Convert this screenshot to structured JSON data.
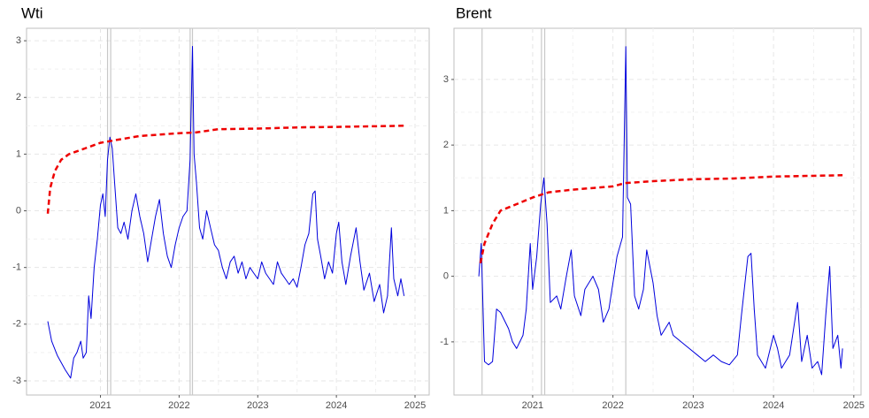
{
  "chart_data": [
    {
      "type": "line",
      "title": "Wti",
      "xlim": [
        2020.06,
        2025.18
      ],
      "xticks": [
        2021,
        2022,
        2023,
        2024,
        2025
      ],
      "ylim": [
        -3.25,
        3.22
      ],
      "yticks": [
        -3,
        -2,
        -1,
        0,
        1,
        2,
        3
      ],
      "grid": true,
      "vlines": [
        2021.09,
        2021.13,
        2022.14,
        2022.17
      ],
      "vline_color": "#c8c8c8",
      "series": [
        {
          "color": "#0000dd",
          "dash": false,
          "x": [
            2020.33,
            2020.38,
            2020.45,
            2020.55,
            2020.62,
            2020.66,
            2020.7,
            2020.75,
            2020.78,
            2020.82,
            2020.85,
            2020.88,
            2020.92,
            2020.96,
            2021.0,
            2021.03,
            2021.06,
            2021.09,
            2021.12,
            2021.15,
            2021.18,
            2021.22,
            2021.26,
            2021.3,
            2021.35,
            2021.4,
            2021.45,
            2021.5,
            2021.55,
            2021.6,
            2021.65,
            2021.7,
            2021.75,
            2021.8,
            2021.85,
            2021.9,
            2021.95,
            2022.0,
            2022.05,
            2022.1,
            2022.14,
            2022.17,
            2022.19,
            2022.22,
            2022.26,
            2022.3,
            2022.35,
            2022.4,
            2022.45,
            2022.5,
            2022.55,
            2022.6,
            2022.65,
            2022.7,
            2022.75,
            2022.8,
            2022.85,
            2022.9,
            2022.95,
            2023.0,
            2023.05,
            2023.1,
            2023.15,
            2023.2,
            2023.25,
            2023.3,
            2023.35,
            2023.4,
            2023.45,
            2023.5,
            2023.55,
            2023.6,
            2023.65,
            2023.7,
            2023.73,
            2023.76,
            2023.8,
            2023.85,
            2023.9,
            2023.95,
            2024.0,
            2024.03,
            2024.07,
            2024.12,
            2024.18,
            2024.25,
            2024.3,
            2024.35,
            2024.42,
            2024.48,
            2024.55,
            2024.6,
            2024.65,
            2024.7,
            2024.73,
            2024.78,
            2024.82,
            2024.86
          ],
          "values": [
            -1.95,
            -2.3,
            -2.55,
            -2.8,
            -2.95,
            -2.6,
            -2.5,
            -2.3,
            -2.6,
            -2.5,
            -1.5,
            -1.9,
            -1.0,
            -0.5,
            0.1,
            0.3,
            -0.1,
            0.9,
            1.3,
            1.1,
            0.5,
            -0.3,
            -0.4,
            -0.2,
            -0.5,
            0.0,
            0.3,
            -0.1,
            -0.4,
            -0.9,
            -0.5,
            -0.1,
            0.2,
            -0.4,
            -0.8,
            -1.0,
            -0.6,
            -0.3,
            -0.1,
            0.0,
            0.9,
            2.9,
            1.0,
            0.5,
            -0.3,
            -0.5,
            0.0,
            -0.3,
            -0.6,
            -0.7,
            -1.0,
            -1.2,
            -0.9,
            -0.8,
            -1.1,
            -0.9,
            -1.2,
            -1.0,
            -1.1,
            -1.2,
            -0.9,
            -1.1,
            -1.2,
            -1.3,
            -0.9,
            -1.1,
            -1.2,
            -1.3,
            -1.2,
            -1.35,
            -1.0,
            -0.6,
            -0.4,
            0.3,
            0.35,
            -0.5,
            -0.8,
            -1.2,
            -0.9,
            -1.1,
            -0.4,
            -0.2,
            -0.9,
            -1.3,
            -0.8,
            -0.3,
            -0.9,
            -1.4,
            -1.1,
            -1.6,
            -1.3,
            -1.8,
            -1.5,
            -0.3,
            -1.2,
            -1.5,
            -1.2,
            -1.5
          ]
        },
        {
          "color": "#ee0000",
          "dash": true,
          "x": [
            2020.33,
            2020.36,
            2020.42,
            2020.5,
            2020.6,
            2020.8,
            2021.0,
            2021.2,
            2021.5,
            2022.0,
            2022.2,
            2022.5,
            2023.0,
            2023.5,
            2024.0,
            2024.86
          ],
          "values": [
            -0.05,
            0.4,
            0.7,
            0.9,
            1.0,
            1.1,
            1.2,
            1.25,
            1.32,
            1.37,
            1.38,
            1.44,
            1.45,
            1.47,
            1.48,
            1.5
          ]
        }
      ]
    },
    {
      "type": "line",
      "title": "Brent",
      "xlim": [
        2020.02,
        2025.09
      ],
      "xticks": [
        2021,
        2022,
        2023,
        2024,
        2025
      ],
      "ylim": [
        -1.81,
        3.78
      ],
      "yticks": [
        -1,
        0,
        1,
        2,
        3
      ],
      "grid": true,
      "vlines": [
        2020.37,
        2021.11,
        2021.15,
        2022.16
      ],
      "vline_color": "#c8c8c8",
      "series": [
        {
          "color": "#0000dd",
          "dash": false,
          "x": [
            2020.33,
            2020.36,
            2020.4,
            2020.45,
            2020.5,
            2020.55,
            2020.6,
            2020.7,
            2020.75,
            2020.8,
            2020.88,
            2020.92,
            2020.97,
            2021.0,
            2021.05,
            2021.1,
            2021.14,
            2021.18,
            2021.22,
            2021.3,
            2021.35,
            2021.42,
            2021.48,
            2021.52,
            2021.6,
            2021.65,
            2021.75,
            2021.82,
            2021.88,
            2021.95,
            2022.05,
            2022.12,
            2022.16,
            2022.18,
            2022.22,
            2022.27,
            2022.32,
            2022.38,
            2022.42,
            2022.5,
            2022.55,
            2022.6,
            2022.7,
            2022.75,
            2022.85,
            2022.95,
            2023.05,
            2023.15,
            2023.25,
            2023.35,
            2023.45,
            2023.55,
            2023.6,
            2023.68,
            2023.72,
            2023.76,
            2023.8,
            2023.9,
            2024.0,
            2024.05,
            2024.1,
            2024.2,
            2024.3,
            2024.35,
            2024.42,
            2024.48,
            2024.55,
            2024.6,
            2024.65,
            2024.7,
            2024.74,
            2024.8,
            2024.84,
            2024.86
          ],
          "values": [
            0.0,
            0.5,
            -1.3,
            -1.35,
            -1.3,
            -0.5,
            -0.55,
            -0.8,
            -1.0,
            -1.1,
            -0.9,
            -0.5,
            0.5,
            -0.2,
            0.3,
            1.1,
            1.5,
            0.8,
            -0.4,
            -0.3,
            -0.5,
            0.0,
            0.4,
            -0.3,
            -0.6,
            -0.2,
            0.0,
            -0.2,
            -0.7,
            -0.5,
            0.3,
            0.6,
            3.5,
            1.2,
            1.1,
            -0.3,
            -0.5,
            -0.2,
            0.4,
            -0.1,
            -0.6,
            -0.9,
            -0.7,
            -0.9,
            -1.0,
            -1.1,
            -1.2,
            -1.3,
            -1.2,
            -1.3,
            -1.35,
            -1.2,
            -0.6,
            0.3,
            0.35,
            -0.5,
            -1.2,
            -1.4,
            -0.9,
            -1.1,
            -1.4,
            -1.2,
            -0.4,
            -1.3,
            -0.9,
            -1.4,
            -1.3,
            -1.5,
            -0.6,
            0.15,
            -1.1,
            -0.9,
            -1.4,
            -1.1
          ]
        },
        {
          "color": "#ee0000",
          "dash": true,
          "x": [
            2020.35,
            2020.4,
            2020.5,
            2020.6,
            2020.8,
            2021.0,
            2021.2,
            2021.5,
            2022.0,
            2022.15,
            2022.5,
            2023.0,
            2023.5,
            2024.0,
            2024.86
          ],
          "values": [
            0.2,
            0.5,
            0.8,
            1.0,
            1.1,
            1.2,
            1.28,
            1.32,
            1.37,
            1.42,
            1.45,
            1.48,
            1.49,
            1.52,
            1.54
          ]
        }
      ]
    }
  ]
}
